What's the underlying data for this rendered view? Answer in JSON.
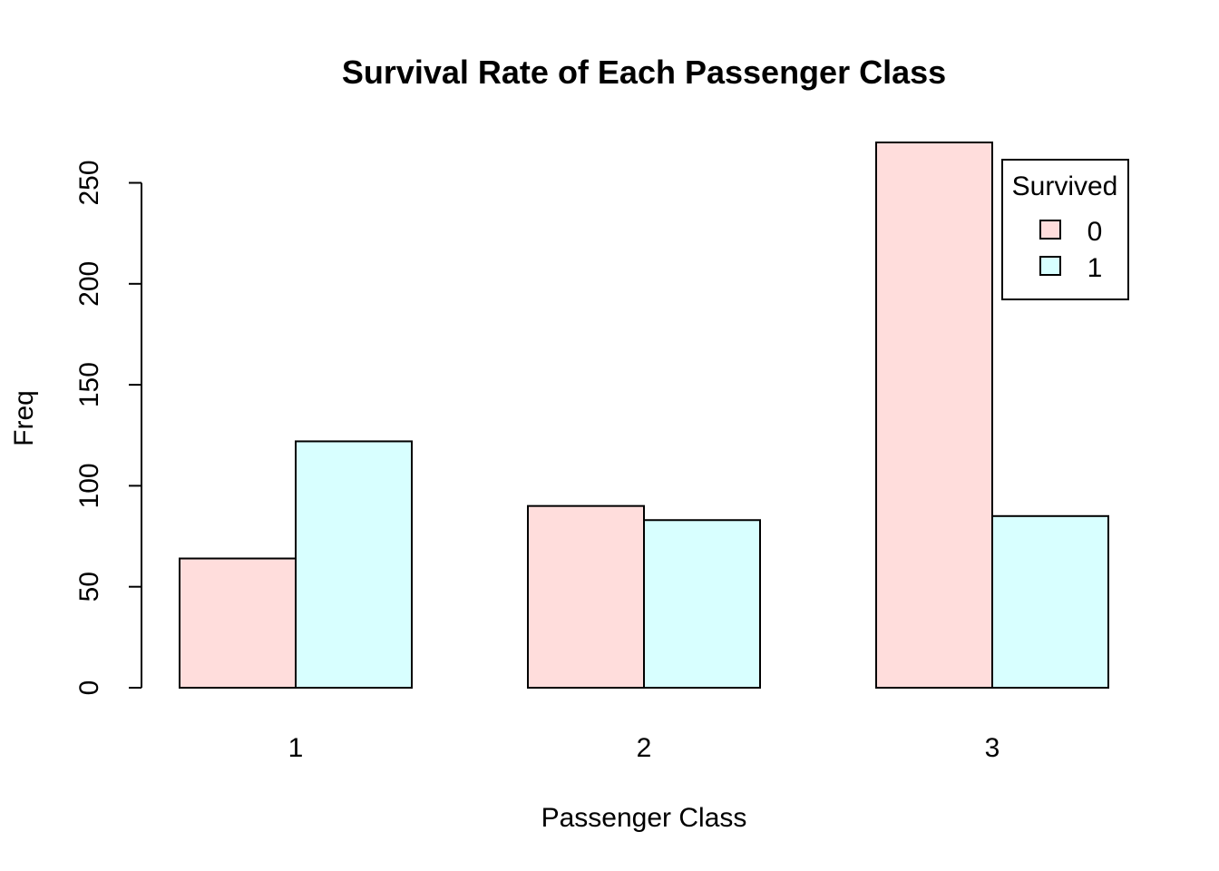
{
  "chart_data": {
    "type": "bar",
    "title": "Survival Rate of Each Passenger Class",
    "xlabel": "Passenger Class",
    "ylabel": "Freq",
    "categories": [
      "1",
      "2",
      "3"
    ],
    "series": [
      {
        "name": "0",
        "values": [
          64,
          90,
          270
        ],
        "color": "#FFDDDC"
      },
      {
        "name": "1",
        "values": [
          122,
          83,
          85
        ],
        "color": "#D8FFFF"
      }
    ],
    "ylim": [
      0,
      270
    ],
    "yticks": [
      0,
      50,
      100,
      150,
      200,
      250
    ],
    "grid": false,
    "legend": {
      "title": "Survived",
      "position": "top-right"
    }
  }
}
